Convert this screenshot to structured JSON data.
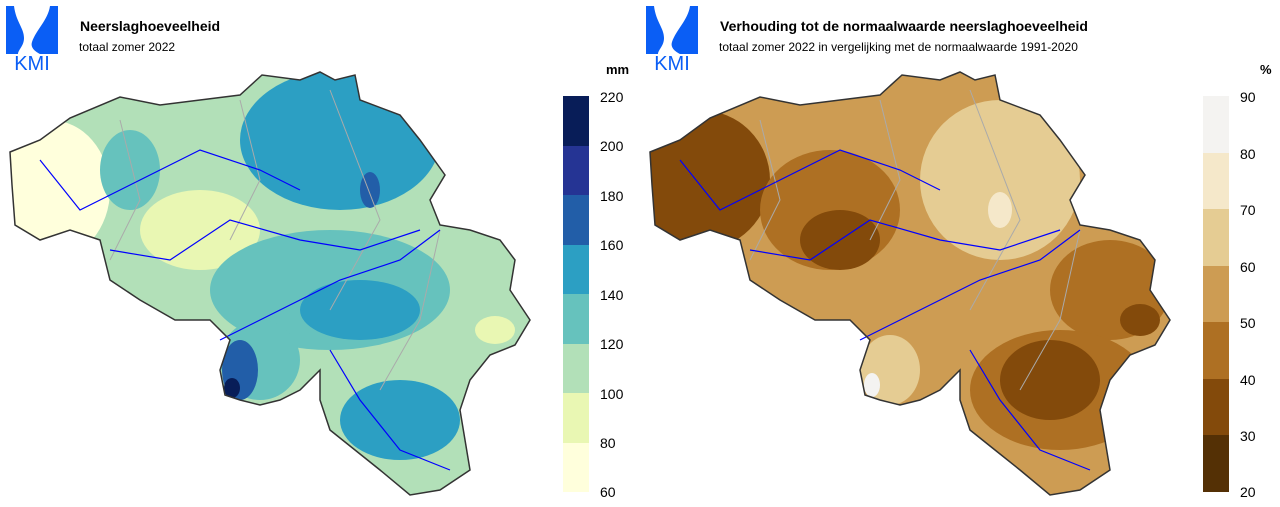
{
  "left": {
    "logo_text": "KMI",
    "title": "Neerslaghoeveelheid",
    "subtitle": "totaal zomer 2022",
    "legend": {
      "unit": "mm",
      "ticks": [
        "220",
        "200",
        "180",
        "160",
        "140",
        "120",
        "100",
        "80",
        "60"
      ],
      "colors": [
        "#081d58",
        "#253494",
        "#225ea8",
        "#2c9fc3",
        "#66c2bd",
        "#b2e0b8",
        "#e9f7b3",
        "#ffffdc"
      ]
    }
  },
  "right": {
    "logo_text": "KMI",
    "title": "Verhouding tot de normaalwaarde neerslaghoeveelheid",
    "subtitle": "totaal zomer 2022 in vergelijking met de normaalwaarde 1991-2020",
    "legend": {
      "unit": "%",
      "ticks": [
        "90",
        "80",
        "70",
        "60",
        "50",
        "40",
        "30",
        "20"
      ],
      "colors": [
        "#f4f3f1",
        "#f5e8ca",
        "#e5cc93",
        "#cd9c53",
        "#ae7023",
        "#834a0b",
        "#543005"
      ]
    }
  },
  "colors": {
    "logo": "#0a5ef5",
    "rivers": "#0000ff",
    "borders": "#aaaaaa",
    "outline": "#333333"
  }
}
